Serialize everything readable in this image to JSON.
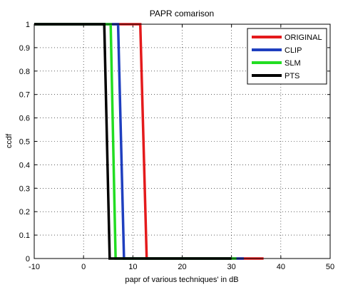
{
  "chart_data": {
    "type": "line",
    "title": "PAPR comarison",
    "xlabel": "papr of various techniques' in dB",
    "ylabel": "ccdf",
    "xlim": [
      -10,
      50
    ],
    "ylim": [
      0,
      1
    ],
    "xticks": [
      -10,
      0,
      10,
      20,
      30,
      40,
      50
    ],
    "yticks": [
      0,
      0.1,
      0.2,
      0.3,
      0.4,
      0.5,
      0.6,
      0.7,
      0.8,
      0.9,
      1
    ],
    "grid": true,
    "legend_position": "top-right",
    "series": [
      {
        "name": "ORIGINAL",
        "color": "#e41a1c",
        "x": [
          -10,
          11.5,
          12.8,
          36.5
        ],
        "y": [
          1,
          1,
          0,
          0
        ]
      },
      {
        "name": "CLIP",
        "color": "#1f3fbf",
        "x": [
          -10,
          7.0,
          8.2,
          32.5
        ],
        "y": [
          1,
          1,
          0,
          0
        ]
      },
      {
        "name": "SLM",
        "color": "#22dd22",
        "x": [
          -10,
          5.5,
          6.5,
          31.0
        ],
        "y": [
          1,
          1,
          0,
          0
        ]
      },
      {
        "name": "PTS",
        "color": "#000000",
        "x": [
          -10,
          4.2,
          5.3,
          30.0
        ],
        "y": [
          1,
          1,
          0,
          0
        ]
      }
    ]
  }
}
